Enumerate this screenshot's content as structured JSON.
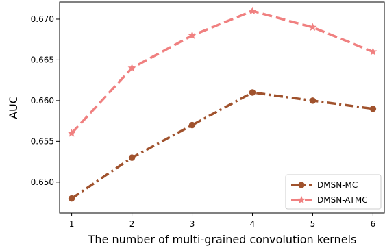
{
  "chart_data": {
    "type": "line",
    "title": "",
    "xlabel": "The number of multi-grained convolution kernels",
    "ylabel": "AUC",
    "x": [
      1,
      2,
      3,
      4,
      5,
      6
    ],
    "xlim": [
      0.8,
      6.2
    ],
    "ylim": [
      0.6462,
      0.6721
    ],
    "xticks": [
      "1",
      "2",
      "3",
      "4",
      "5",
      "6"
    ],
    "yticks": [
      "0.650",
      "0.655",
      "0.660",
      "0.665",
      "0.670"
    ],
    "grid": false,
    "legend_position": "bottom-right",
    "series": [
      {
        "name": "DMSN-MC",
        "values": [
          0.648,
          0.653,
          0.657,
          0.661,
          0.66,
          0.659
        ],
        "color": "#a0522d",
        "line_style": "dash-dot",
        "marker": "circle"
      },
      {
        "name": "DMSN-ATMC",
        "values": [
          0.656,
          0.664,
          0.668,
          0.671,
          0.669,
          0.666
        ],
        "color": "#f08080",
        "line_style": "dashed",
        "marker": "star"
      }
    ]
  }
}
